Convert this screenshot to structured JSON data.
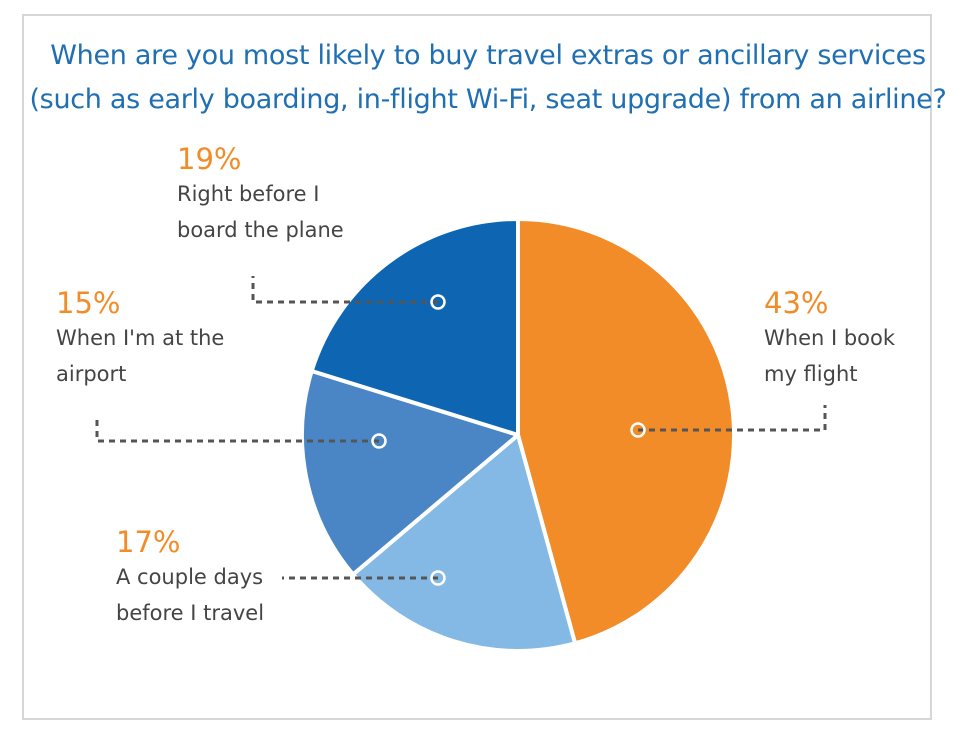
{
  "chart_data": {
    "type": "pie",
    "title": "When are you most likely to buy travel extras or ancillary services (such as early boarding, in-flight Wi-Fi, seat upgrade) from an airline?",
    "title_lines": [
      "When are you most likely to buy travel extras or ancillary services",
      "(such as early boarding, in-flight Wi-Fi, seat upgrade) from an airline?"
    ],
    "slices": [
      {
        "label_lines": [
          "When I book",
          "my flight"
        ],
        "value": 43,
        "value_label": "43%",
        "color": "#f28c28"
      },
      {
        "label_lines": [
          "A couple days",
          "before I travel"
        ],
        "value": 17,
        "value_label": "17%",
        "color": "#85b9e5"
      },
      {
        "label_lines": [
          "When I'm at the",
          "airport"
        ],
        "value": 15,
        "value_label": "15%",
        "color": "#4a86c6"
      },
      {
        "label_lines": [
          "Right before I",
          "board the plane"
        ],
        "value": 19,
        "value_label": "19%",
        "color": "#0e66b3"
      }
    ],
    "start_angle_deg": 0,
    "direction": "clockwise",
    "legend": "none",
    "colors": {
      "title": "#1f6fb2",
      "value_labels": "#f28c28",
      "text": "#444444",
      "leader": "#555555"
    }
  }
}
